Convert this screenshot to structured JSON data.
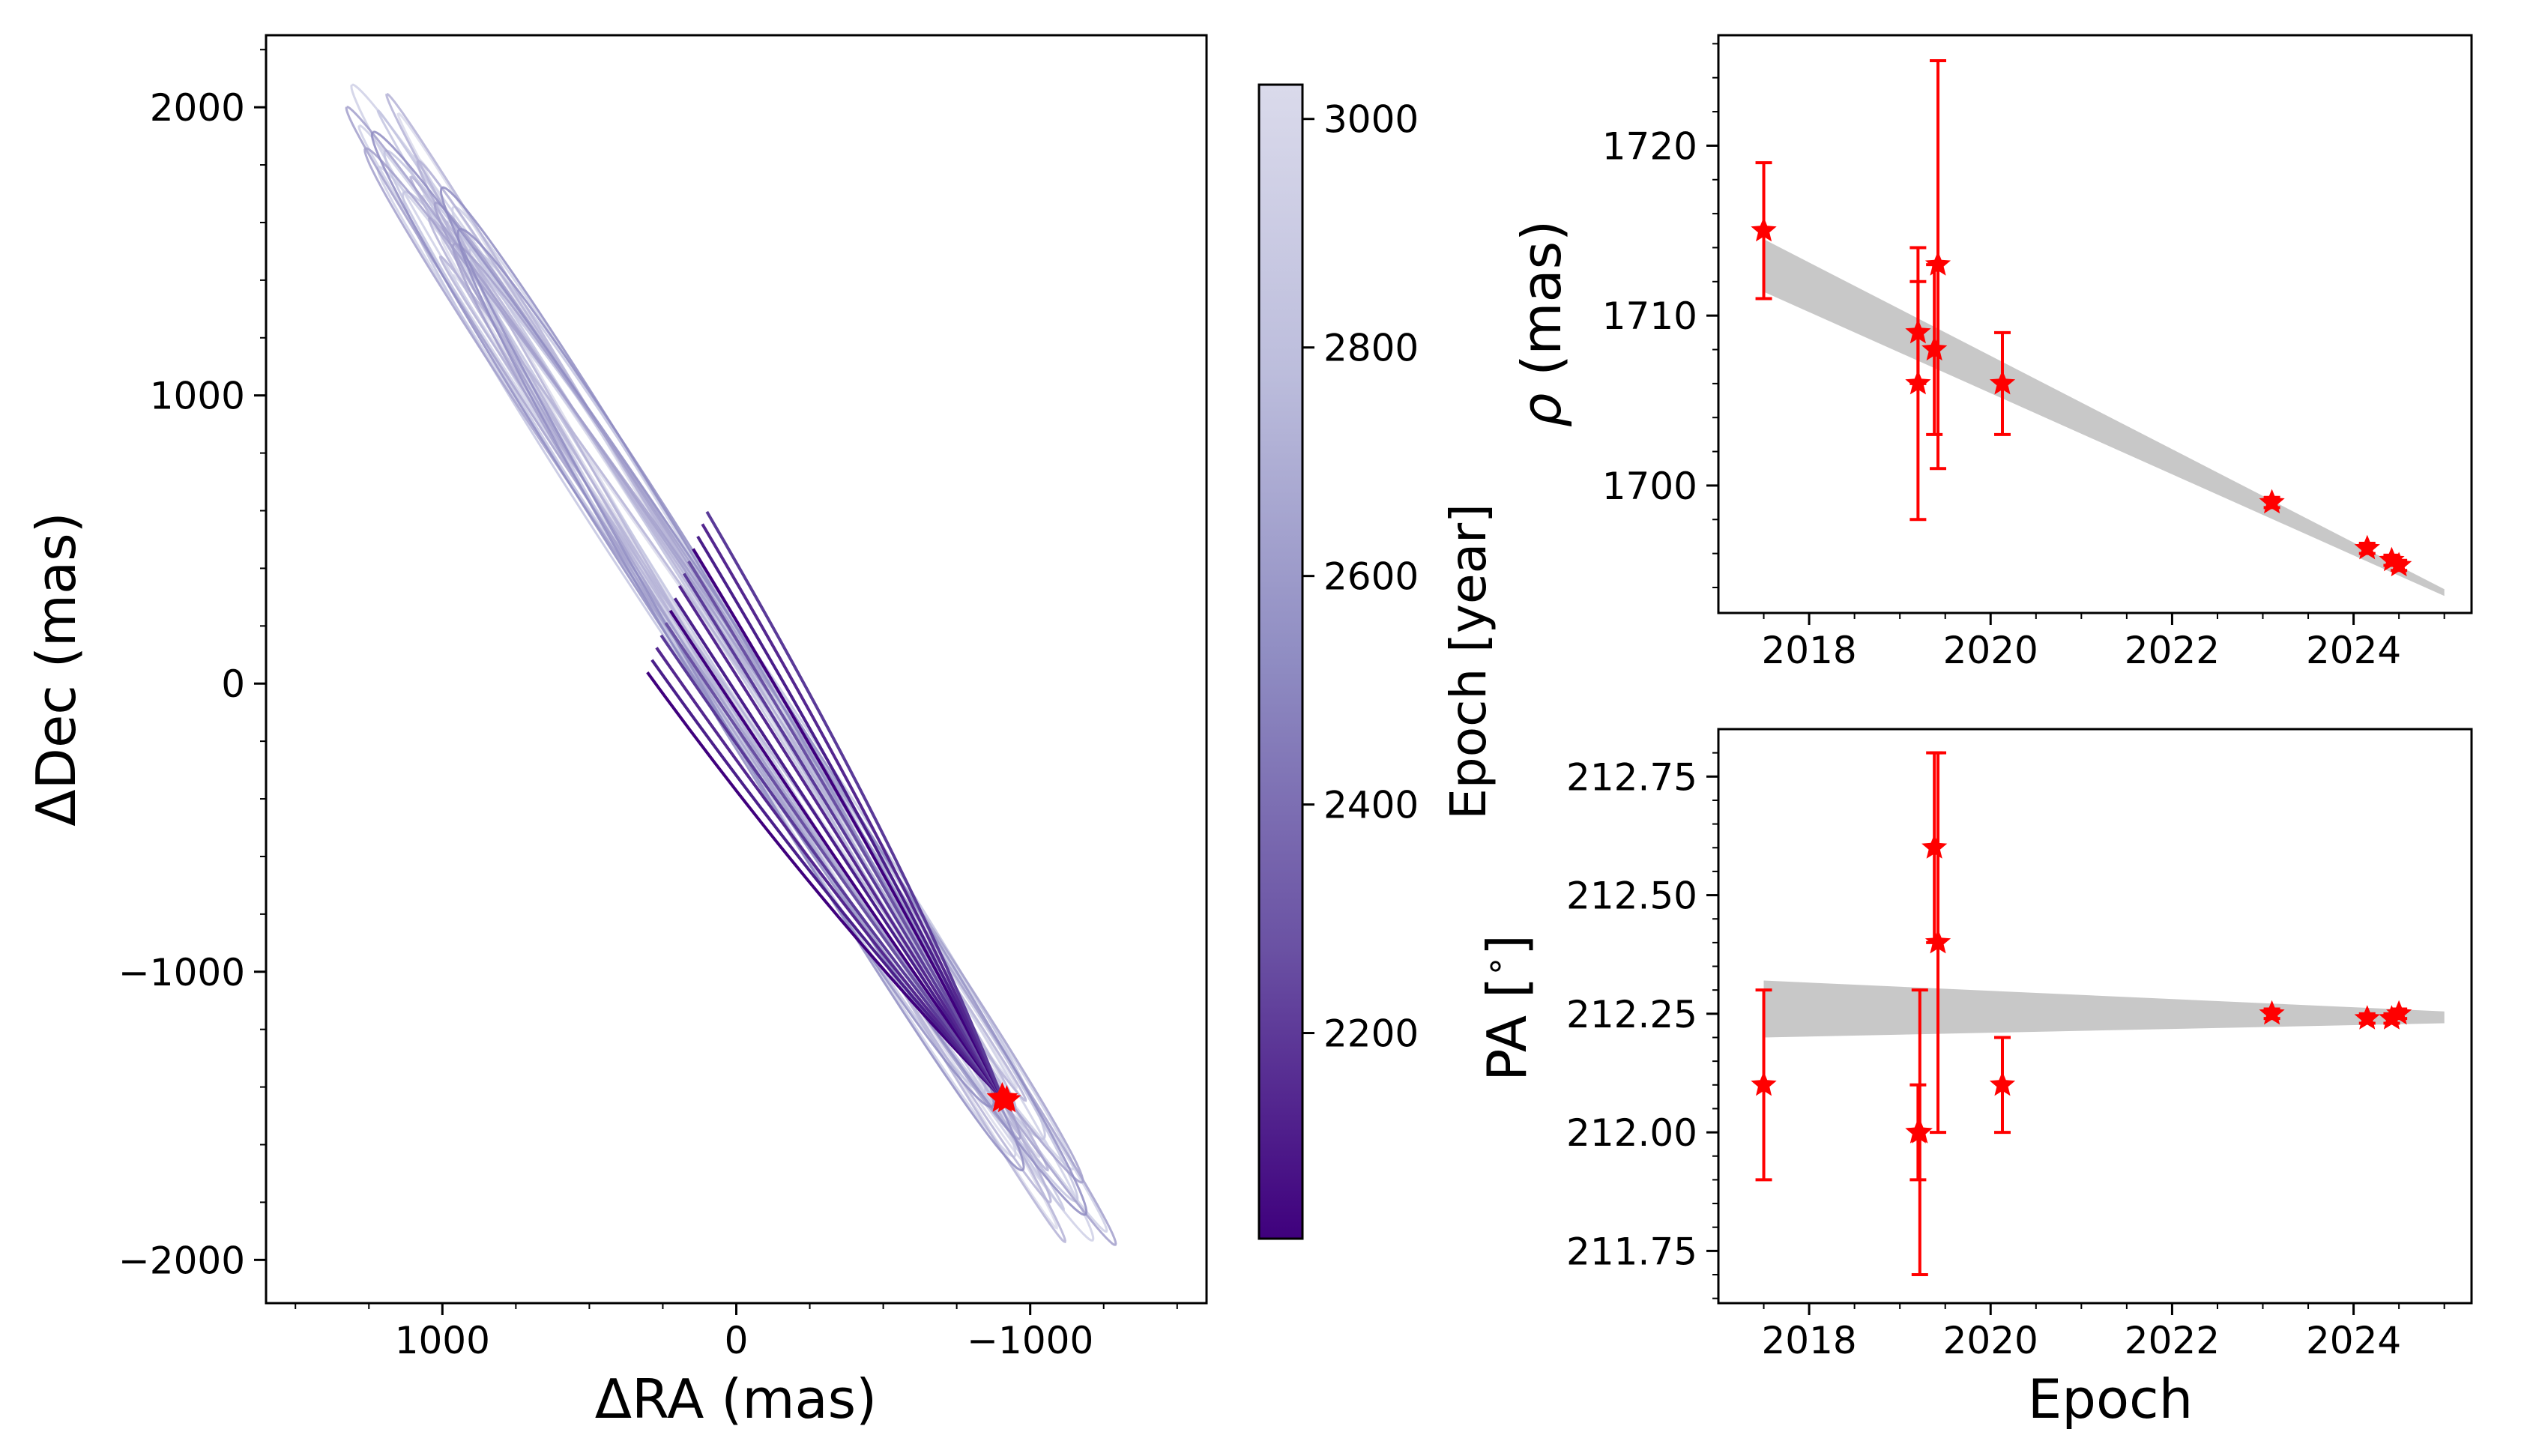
{
  "colors": {
    "orbit_dark": "#3f007d",
    "orbit_light": "#d3d3e8",
    "model_band": "#c8c8c8",
    "data_marker": "#ff0000",
    "axes": "#000000"
  },
  "chart_data": [
    {
      "id": "orbit_panel",
      "type": "line",
      "xlabel": "ΔRA (mas)",
      "ylabel": "ΔDec (mas)",
      "xlim": [
        1600,
        -1600
      ],
      "ylim": [
        -2150,
        2250
      ],
      "x_ticks": [
        1000,
        0,
        -1000
      ],
      "x_tick_labels": [
        "1000",
        "0",
        "−1000"
      ],
      "y_ticks": [
        2000,
        1000,
        0,
        -1000,
        -2000
      ],
      "y_tick_labels": [
        "2000",
        "1000",
        "0",
        "−1000",
        "−2000"
      ],
      "current_position": {
        "x": -905,
        "y": -1440
      },
      "orbit_extremes": {
        "northeast_end": {
          "x": 1290,
          "y": 2050
        },
        "southwest_end": {
          "x": -1230,
          "y": -1960
        }
      },
      "colorbar": {
        "label": "Epoch [year]",
        "range": [
          2020,
          3030
        ],
        "ticks": [
          3000,
          2800,
          2600,
          2400,
          2200
        ],
        "tick_labels": [
          "3000",
          "2800",
          "2600",
          "2400",
          "2200"
        ],
        "colormap": "Purples"
      }
    },
    {
      "id": "separation_panel",
      "type": "scatter",
      "ylabel_symbol": "ρ",
      "ylabel_text": " (mas)",
      "xlim": [
        2017.0,
        2025.3
      ],
      "ylim": [
        1692.5,
        1726.5
      ],
      "x_ticks": [
        2018,
        2020,
        2022,
        2024
      ],
      "x_tick_labels": [
        "2018",
        "2020",
        "2022",
        "2024"
      ],
      "y_ticks": [
        1700,
        1710,
        1720
      ],
      "y_tick_labels": [
        "1700",
        "1710",
        "1720"
      ],
      "model_band": {
        "x_start": 2017.5,
        "x_end": 2025.0,
        "upper": [
          1714.5,
          1693.9
        ],
        "lower": [
          1711.4,
          1693.5
        ]
      },
      "points": [
        {
          "epoch": 2017.5,
          "value": 1715,
          "err": 4
        },
        {
          "epoch": 2019.2,
          "value": 1709,
          "err": 3
        },
        {
          "epoch": 2019.2,
          "value": 1706,
          "err": 8
        },
        {
          "epoch": 2019.38,
          "value": 1708,
          "err": 5
        },
        {
          "epoch": 2019.42,
          "value": 1713,
          "err": 12
        },
        {
          "epoch": 2020.13,
          "value": 1706,
          "err": 3
        },
        {
          "epoch": 2023.1,
          "value": 1699,
          "err": 0.3
        },
        {
          "epoch": 2024.15,
          "value": 1696.3,
          "err": 0.3
        },
        {
          "epoch": 2024.42,
          "value": 1695.6,
          "err": 0.3
        },
        {
          "epoch": 2024.5,
          "value": 1695.3,
          "err": 0.3
        }
      ]
    },
    {
      "id": "position_angle_panel",
      "type": "scatter",
      "xlabel": "Epoch",
      "ylabel": "PA [$^\\circ$]",
      "ylabel_parts": [
        "PA [",
        "∘",
        "]"
      ],
      "xlim": [
        2017.0,
        2025.3
      ],
      "ylim": [
        211.64,
        212.85
      ],
      "x_ticks": [
        2018,
        2020,
        2022,
        2024
      ],
      "x_tick_labels": [
        "2018",
        "2020",
        "2022",
        "2024"
      ],
      "y_ticks": [
        211.75,
        212.0,
        212.25,
        212.5,
        212.75
      ],
      "y_tick_labels": [
        "211.75",
        "212.00",
        "212.25",
        "212.50",
        "212.75"
      ],
      "model_band": {
        "x_start": 2017.5,
        "x_end": 2025.0,
        "upper": [
          212.32,
          212.255
        ],
        "lower": [
          212.2,
          212.23
        ]
      },
      "points": [
        {
          "epoch": 2017.5,
          "value": 212.1,
          "err": 0.2
        },
        {
          "epoch": 2019.2,
          "value": 212.0,
          "err": 0.1
        },
        {
          "epoch": 2019.22,
          "value": 212.0,
          "err": 0.3
        },
        {
          "epoch": 2019.38,
          "value": 212.6,
          "err": 0.2
        },
        {
          "epoch": 2019.42,
          "value": 212.4,
          "err": 0.4
        },
        {
          "epoch": 2020.13,
          "value": 212.1,
          "err": 0.1
        },
        {
          "epoch": 2023.1,
          "value": 212.25,
          "err": 0.01
        },
        {
          "epoch": 2024.15,
          "value": 212.24,
          "err": 0.01
        },
        {
          "epoch": 2024.42,
          "value": 212.24,
          "err": 0.01
        },
        {
          "epoch": 2024.5,
          "value": 212.25,
          "err": 0.01
        }
      ]
    }
  ]
}
